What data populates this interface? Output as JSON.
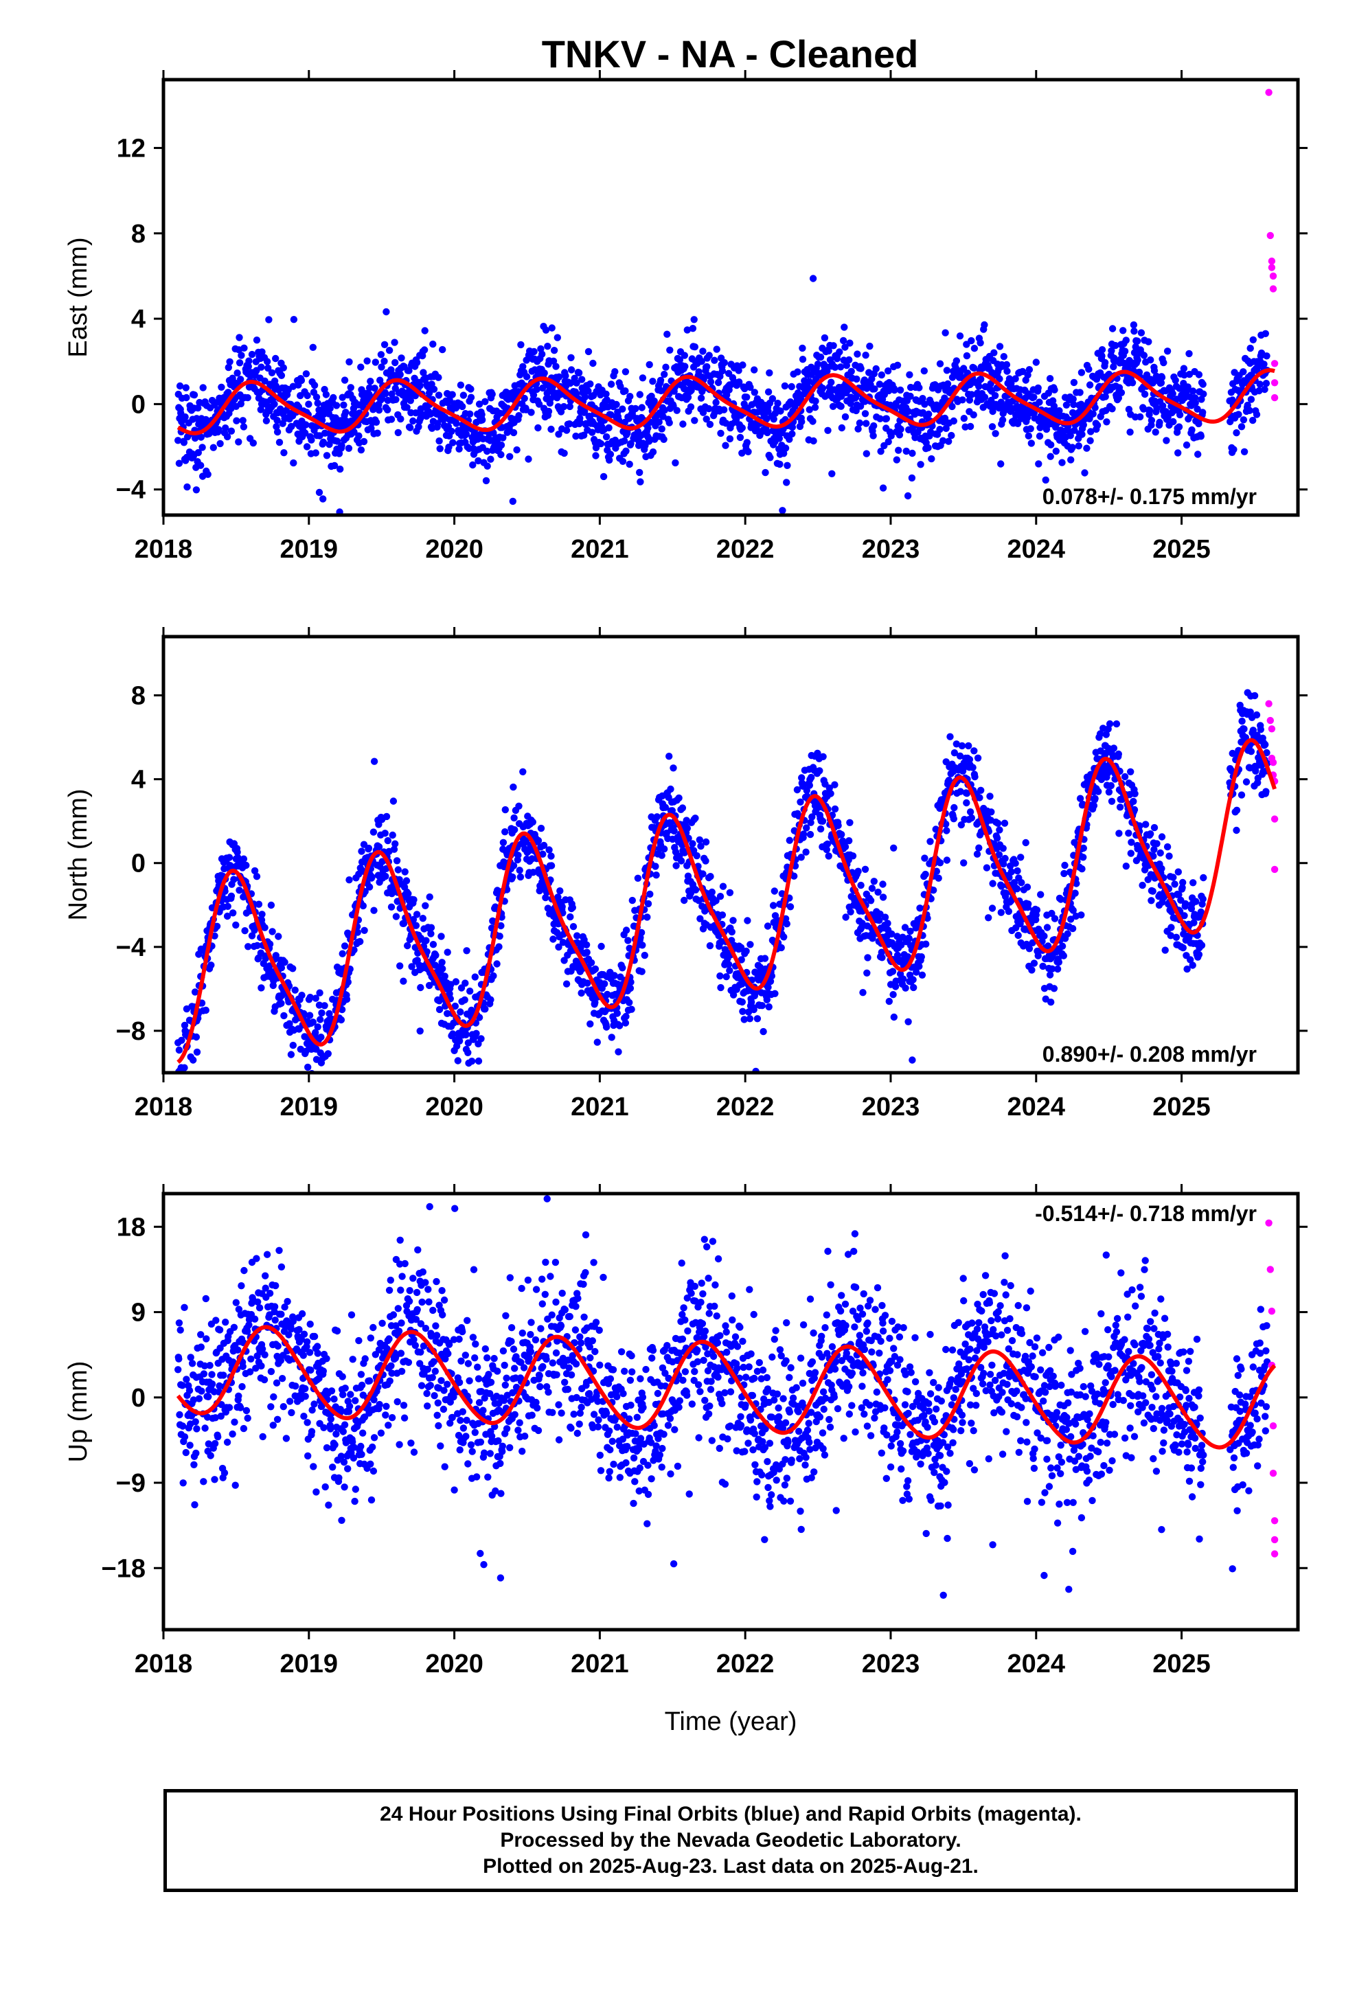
{
  "chart_data": [
    {
      "type": "scatter",
      "title": "TNKV  - NA - Cleaned",
      "xlabel": "",
      "ylabel": "East (mm)",
      "xlim": [
        2018,
        2025.8
      ],
      "ylim": [
        -5.2,
        15.2
      ],
      "x_ticks": [
        2018,
        2019,
        2020,
        2021,
        2022,
        2023,
        2024,
        2025
      ],
      "x_tick_labels": [
        "2018",
        "2019",
        "2020",
        "2021",
        "2022",
        "2023",
        "2024",
        "2025"
      ],
      "y_ticks": [
        -4,
        0,
        4,
        8,
        12
      ],
      "y_tick_labels": [
        "−4",
        "0",
        "4",
        "8",
        "12"
      ],
      "rate_label": "0.078+/- 0.175 mm/yr",
      "rate_position": "bottom-right",
      "data_range": [
        2018.1,
        2025.64
      ],
      "series": [
        {
          "name": "Final Orbits",
          "color": "#0000ff",
          "kind": "points",
          "trend": 0.078,
          "annual_amp": 1.1,
          "annual_phase": 2018.65,
          "semi_amp": 0.25,
          "noise": 0.95,
          "offset": 0.05
        },
        {
          "name": "Rapid Orbits",
          "color": "#ff00ff",
          "kind": "points",
          "x": [
            2025.6,
            2025.61,
            2025.62,
            2025.62,
            2025.63,
            2025.63,
            2025.64,
            2025.64,
            2025.64
          ],
          "y": [
            14.6,
            7.9,
            6.7,
            6.4,
            6.0,
            5.4,
            1.9,
            1.0,
            0.3
          ]
        },
        {
          "name": "Model",
          "color": "#ff0000",
          "kind": "line"
        }
      ]
    },
    {
      "type": "scatter",
      "title": "",
      "xlabel": "",
      "ylabel": "North (mm)",
      "xlim": [
        2018,
        2025.8
      ],
      "ylim": [
        -10,
        10.8
      ],
      "x_ticks": [
        2018,
        2019,
        2020,
        2021,
        2022,
        2023,
        2024,
        2025
      ],
      "x_tick_labels": [
        "2018",
        "2019",
        "2020",
        "2021",
        "2022",
        "2023",
        "2024",
        "2025"
      ],
      "y_ticks": [
        -8,
        -4,
        0,
        4,
        8
      ],
      "y_tick_labels": [
        "−8",
        "−4",
        "0",
        "4",
        "8"
      ],
      "rate_label": "0.890+/- 0.208 mm/yr",
      "rate_position": "bottom-right",
      "data_range": [
        2018.1,
        2025.64
      ],
      "series": [
        {
          "name": "Final Orbits",
          "color": "#0000ff",
          "kind": "points",
          "trend": 0.89,
          "annual_amp": 4.1,
          "annual_phase": 2018.52,
          "semi_amp": 0.9,
          "noise": 1.0,
          "offset": -1.95
        },
        {
          "name": "Rapid Orbits",
          "color": "#ff00ff",
          "kind": "points",
          "x": [
            2025.6,
            2025.61,
            2025.62,
            2025.62,
            2025.63,
            2025.63,
            2025.64,
            2025.64,
            2025.64
          ],
          "y": [
            7.6,
            6.8,
            6.4,
            5.0,
            4.8,
            4.2,
            3.9,
            2.1,
            -0.3
          ]
        },
        {
          "name": "Model",
          "color": "#ff0000",
          "kind": "line"
        }
      ]
    },
    {
      "type": "scatter",
      "title": "",
      "xlabel": "Time (year)",
      "ylabel": "Up (mm)",
      "xlim": [
        2018,
        2025.8
      ],
      "ylim": [
        -24.5,
        21.5
      ],
      "x_ticks": [
        2018,
        2019,
        2020,
        2021,
        2022,
        2023,
        2024,
        2025
      ],
      "x_tick_labels": [
        "2018",
        "2019",
        "2020",
        "2021",
        "2022",
        "2023",
        "2024",
        "2025"
      ],
      "y_ticks": [
        -18,
        -9,
        0,
        9,
        18
      ],
      "y_tick_labels": [
        "−18",
        "−9",
        "0",
        "9",
        "18"
      ],
      "rate_label": "-0.514+/- 0.718 mm/yr",
      "rate_position": "top-right",
      "data_range": [
        2018.1,
        2025.64
      ],
      "series": [
        {
          "name": "Final Orbits",
          "color": "#0000ff",
          "kind": "points",
          "trend": -0.514,
          "annual_amp": 4.6,
          "annual_phase": 2018.73,
          "semi_amp": 0.4,
          "noise": 4.2,
          "offset": 1.0
        },
        {
          "name": "Rapid Orbits",
          "color": "#ff00ff",
          "kind": "points",
          "x": [
            2025.6,
            2025.61,
            2025.62,
            2025.62,
            2025.63,
            2025.63,
            2025.64,
            2025.64,
            2025.64
          ],
          "y": [
            18.4,
            13.5,
            9.1,
            3.4,
            -3.0,
            -8.0,
            -13.0,
            -15.0,
            -16.5
          ]
        },
        {
          "name": "Model",
          "color": "#ff0000",
          "kind": "line"
        }
      ]
    }
  ],
  "footer": {
    "line1": "24 Hour Positions Using Final Orbits (blue) and Rapid Orbits (magenta).",
    "line2": "Processed by the Nevada Geodetic Laboratory.",
    "line3": "Plotted on 2025-Aug-23. Last data on 2025-Aug-21."
  }
}
